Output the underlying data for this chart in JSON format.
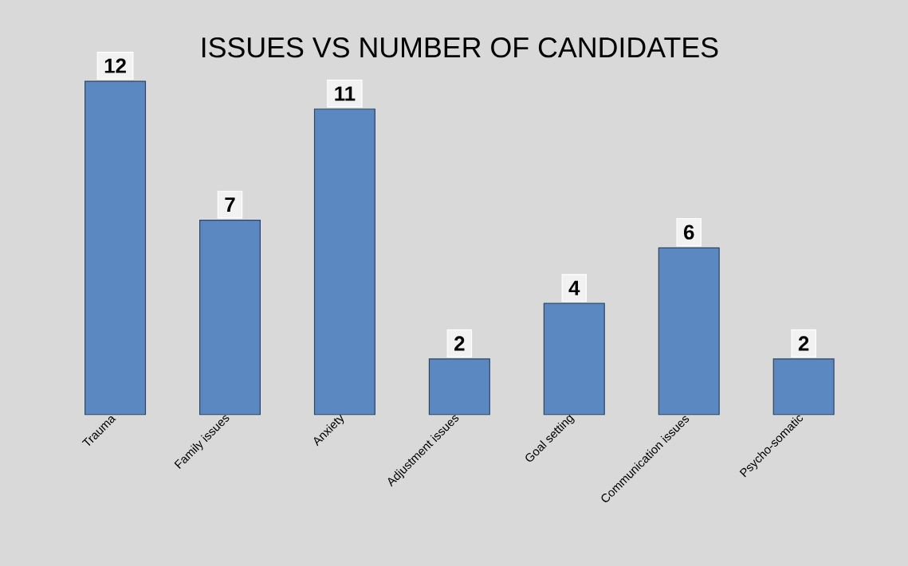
{
  "chart_data": {
    "type": "bar",
    "title": "ISSUES VS NUMBER OF CANDIDATES",
    "categories": [
      "Trauma",
      "Family issues",
      "Anxiety",
      "Adjustment issues",
      "Goal setting",
      "Communication issues",
      "Psycho-somatic"
    ],
    "values": [
      12,
      7,
      11,
      2,
      4,
      6,
      2
    ],
    "color": "#5b88c0",
    "data_labels": true
  }
}
